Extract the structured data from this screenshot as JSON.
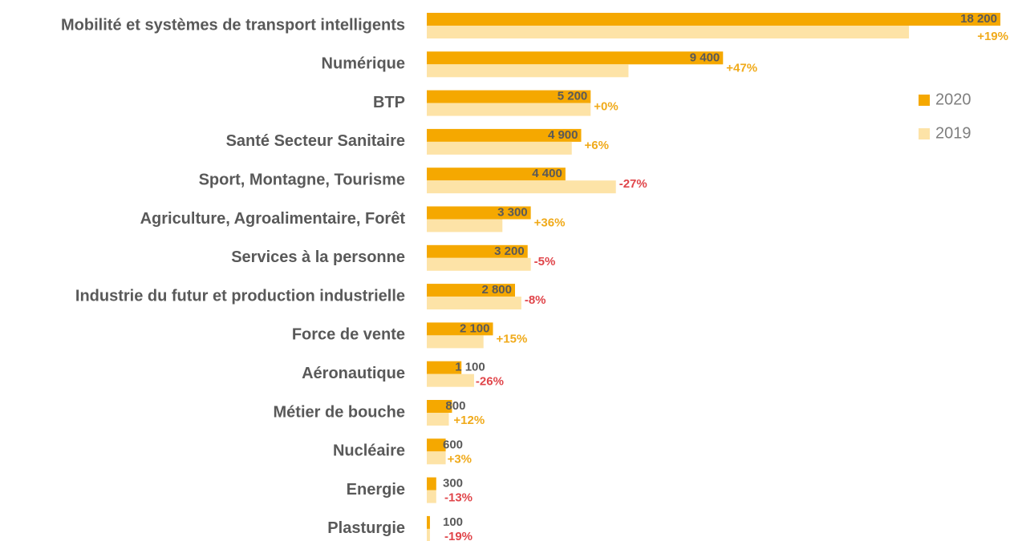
{
  "chart_data": {
    "type": "bar",
    "orientation": "horizontal",
    "categories": [
      "Mobilité et systèmes de transport intelligents",
      "Numérique",
      "BTP",
      "Santé Secteur Sanitaire",
      "Sport, Montagne, Tourisme",
      "Agriculture, Agroalimentaire, Forêt",
      "Services à la personne",
      "Industrie du futur et production industrielle",
      "Force de vente",
      "Aéronautique",
      "Métier de bouche",
      "Nucléaire",
      "Energie",
      "Plasturgie"
    ],
    "series": [
      {
        "name": "2020",
        "color": "#f5a800",
        "values": [
          18200,
          9400,
          5200,
          4900,
          4400,
          3300,
          3200,
          2800,
          2100,
          1100,
          800,
          600,
          300,
          100
        ],
        "value_labels": [
          "18 200",
          "9 400",
          "5 200",
          "4 900",
          "4 400",
          "3 300",
          "3 200",
          "2 800",
          "2 100",
          "1 100",
          "800",
          "600",
          "300",
          "100"
        ]
      },
      {
        "name": "2019",
        "color": "#fde3a7",
        "values": [
          15300,
          6400,
          5200,
          4600,
          6000,
          2400,
          3300,
          3000,
          1800,
          1500,
          700,
          600,
          300,
          100
        ]
      }
    ],
    "change_labels": [
      "+19%",
      "+47%",
      "+0%",
      "+6%",
      "-27%",
      "+36%",
      "-5%",
      "-8%",
      "+15%",
      "-26%",
      "+12%",
      "+3%",
      "-13%",
      "-19%"
    ],
    "legend": "right"
  }
}
